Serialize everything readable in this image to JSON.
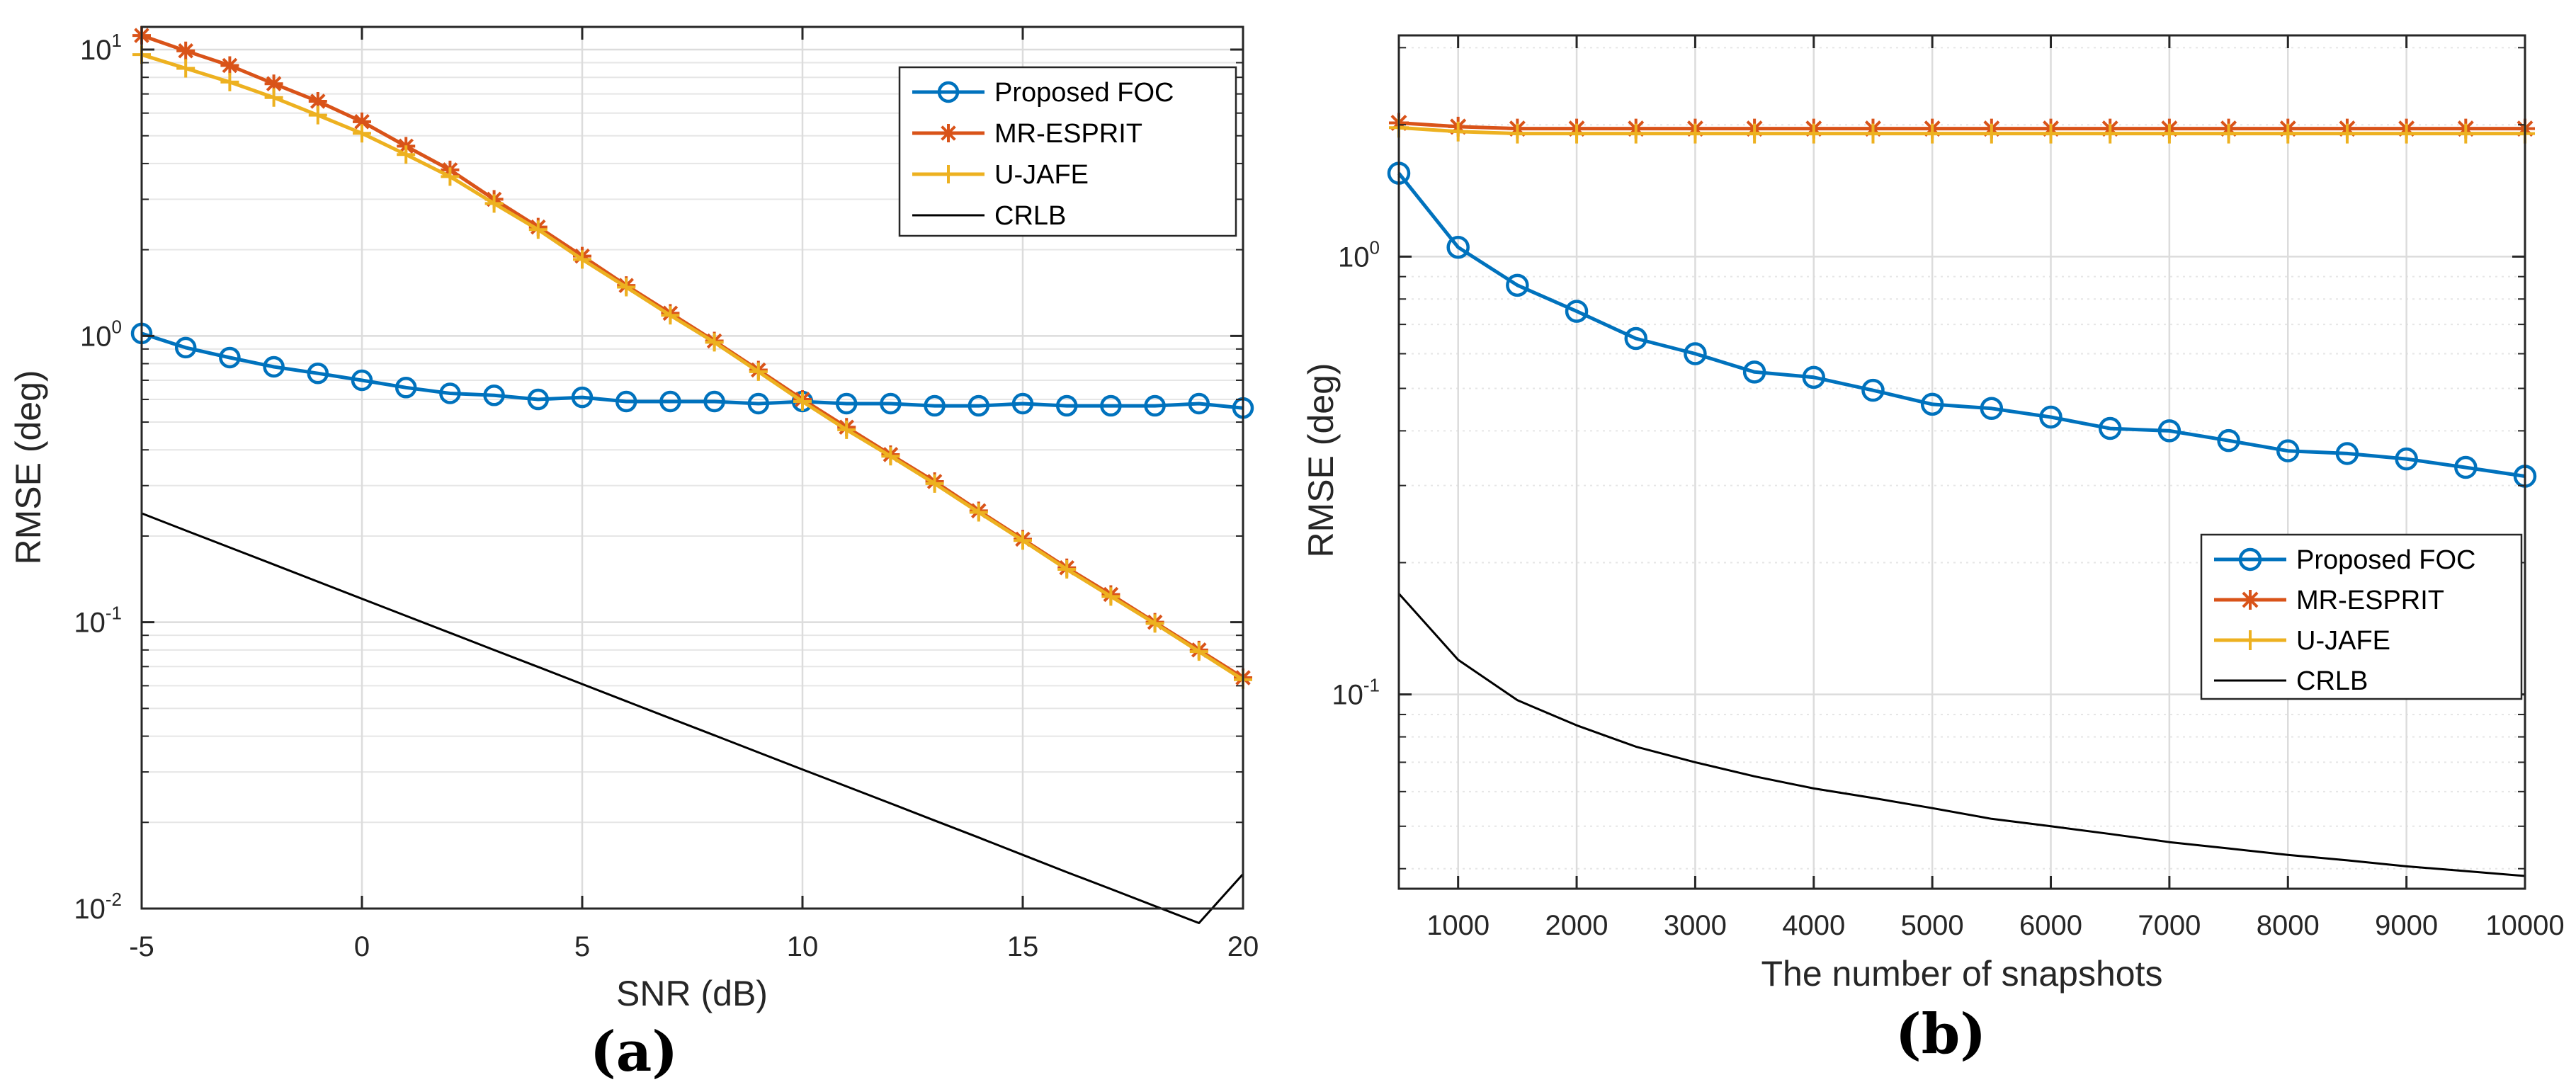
{
  "colors": {
    "foc": "#0072BD",
    "mr_esprit": "#D95319",
    "u_jafe": "#EDB120",
    "crlb": "#000000",
    "grid": "#dcdcdc",
    "axes": "#262626"
  },
  "chart_data": [
    {
      "panel": "(a)",
      "type": "line",
      "xlabel": "SNR (dB)",
      "ylabel": "RMSE (deg)",
      "yscale": "log",
      "xlim": [
        -5,
        20
      ],
      "ylim": [
        0.01,
        12
      ],
      "xticks": [
        -5,
        0,
        5,
        10,
        15,
        20
      ],
      "xtick_labels": [
        "-5",
        "0",
        "5",
        "10",
        "15",
        "20"
      ],
      "yticks": [
        0.01,
        0.1,
        1,
        10
      ],
      "ytick_labels": [
        {
          "base": "10",
          "exp": "-2"
        },
        {
          "base": "10",
          "exp": "-1"
        },
        {
          "base": "10",
          "exp": "0"
        },
        {
          "base": "10",
          "exp": "1"
        }
      ],
      "grid": true,
      "legend_position": "top-right",
      "x": [
        -5,
        -4,
        -3,
        -2,
        -1,
        0,
        1,
        2,
        3,
        4,
        5,
        6,
        7,
        8,
        9,
        10,
        11,
        12,
        13,
        14,
        15,
        16,
        17,
        18,
        19,
        20
      ],
      "series": [
        {
          "name": "Proposed FOC",
          "color_key": "foc",
          "marker": "circle",
          "values": [
            1.02,
            0.91,
            0.84,
            0.78,
            0.74,
            0.7,
            0.66,
            0.63,
            0.62,
            0.6,
            0.61,
            0.59,
            0.59,
            0.59,
            0.58,
            0.59,
            0.58,
            0.58,
            0.57,
            0.57,
            0.58,
            0.57,
            0.57,
            0.57,
            0.58,
            0.56
          ]
        },
        {
          "name": "MR-ESPRIT",
          "color_key": "mr_esprit",
          "marker": "asterisk",
          "values": [
            11.2,
            9.9,
            8.8,
            7.6,
            6.6,
            5.6,
            4.6,
            3.8,
            3.0,
            2.4,
            1.9,
            1.5,
            1.2,
            0.96,
            0.76,
            0.6,
            0.48,
            0.385,
            0.31,
            0.245,
            0.195,
            0.155,
            0.125,
            0.1,
            0.08,
            0.064
          ]
        },
        {
          "name": "U-JAFE",
          "color_key": "u_jafe",
          "marker": "plus",
          "values": [
            9.6,
            8.6,
            7.7,
            6.8,
            5.9,
            5.1,
            4.3,
            3.6,
            2.9,
            2.35,
            1.85,
            1.48,
            1.18,
            0.95,
            0.75,
            0.59,
            0.47,
            0.38,
            0.305,
            0.242,
            0.193,
            0.153,
            0.123,
            0.099,
            0.079,
            0.063
          ]
        },
        {
          "name": "CRLB",
          "color_key": "crlb",
          "marker": "none",
          "values": [
            0.24,
            0.2092,
            0.1824,
            0.159,
            0.1386,
            0.1208,
            0.1053,
            0.0918,
            0.08,
            0.0698,
            0.0608,
            0.053,
            0.0462,
            0.0403,
            0.0351,
            0.0306,
            0.0267,
            0.0233,
            0.0203,
            0.0177,
            0.0154,
            0.0134,
            0.0117,
            0.0102,
            0.0089,
            0.0132
          ]
        }
      ]
    },
    {
      "panel": "(b)",
      "type": "line",
      "xlabel": "The number of snapshots",
      "ylabel": "RMSE (deg)",
      "yscale": "log",
      "xlim": [
        500,
        10000
      ],
      "ylim": [
        0.036,
        3.2
      ],
      "xticks": [
        1000,
        2000,
        3000,
        4000,
        5000,
        6000,
        7000,
        8000,
        9000,
        10000
      ],
      "xtick_labels": [
        "1000",
        "2000",
        "3000",
        "4000",
        "5000",
        "6000",
        "7000",
        "8000",
        "9000",
        "10000"
      ],
      "yticks": [
        0.1,
        1
      ],
      "ytick_labels": [
        {
          "base": "10",
          "exp": "-1"
        },
        {
          "base": "10",
          "exp": "0"
        }
      ],
      "grid": true,
      "legend_position": "middle-right",
      "x": [
        500,
        1000,
        1500,
        2000,
        2500,
        3000,
        3500,
        4000,
        4500,
        5000,
        5500,
        6000,
        6500,
        7000,
        7500,
        8000,
        8500,
        9000,
        9500,
        10000
      ],
      "series": [
        {
          "name": "Proposed FOC",
          "color_key": "foc",
          "marker": "circle",
          "values": [
            1.55,
            1.05,
            0.86,
            0.75,
            0.65,
            0.6,
            0.545,
            0.53,
            0.495,
            0.46,
            0.45,
            0.43,
            0.405,
            0.4,
            0.38,
            0.36,
            0.355,
            0.345,
            0.33,
            0.315
          ]
        },
        {
          "name": "MR-ESPRIT",
          "color_key": "mr_esprit",
          "marker": "asterisk",
          "values": [
            2.02,
            1.98,
            1.96,
            1.96,
            1.96,
            1.96,
            1.96,
            1.96,
            1.96,
            1.96,
            1.96,
            1.96,
            1.96,
            1.96,
            1.96,
            1.96,
            1.96,
            1.96,
            1.96,
            1.96
          ]
        },
        {
          "name": "U-JAFE",
          "color_key": "u_jafe",
          "marker": "plus",
          "values": [
            1.97,
            1.93,
            1.91,
            1.91,
            1.91,
            1.91,
            1.91,
            1.91,
            1.91,
            1.91,
            1.91,
            1.91,
            1.91,
            1.91,
            1.91,
            1.91,
            1.91,
            1.91,
            1.91,
            1.91
          ]
        },
        {
          "name": "CRLB",
          "color_key": "crlb",
          "marker": "none",
          "values": [
            0.17,
            0.12,
            0.097,
            0.085,
            0.076,
            0.07,
            0.065,
            0.061,
            0.058,
            0.055,
            0.052,
            0.05,
            0.048,
            0.046,
            0.0445,
            0.043,
            0.0418,
            0.0405,
            0.0395,
            0.0385
          ]
        }
      ]
    }
  ]
}
